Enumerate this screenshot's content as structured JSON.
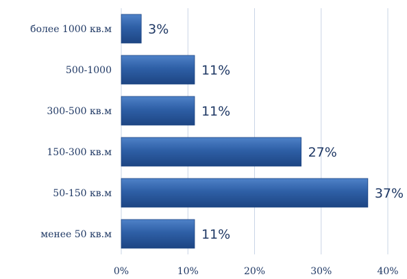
{
  "chart_data": {
    "type": "bar",
    "orientation": "horizontal",
    "title": "",
    "xlabel": "",
    "ylabel": "",
    "categories": [
      "более 1000 кв.м",
      "500-1000",
      "300-500 кв.м",
      "150-300 кв.м",
      "50-150 кв.м",
      "менее 50 кв.м"
    ],
    "values": [
      3,
      11,
      11,
      27,
      37,
      11
    ],
    "data_labels": [
      "3%",
      "11%",
      "11%",
      "27%",
      "37%",
      "11%"
    ],
    "xlim": [
      0,
      40
    ],
    "x_ticks": [
      0,
      10,
      20,
      30,
      40
    ],
    "x_tick_labels": [
      "0%",
      "10%",
      "20%",
      "30%",
      "40%"
    ],
    "grid": true,
    "legend": "none",
    "colors": {
      "bar": "#2e5fa6",
      "bar_light": "#4f82c8",
      "bar_dark": "#1d4583",
      "grid": "#c9d4e6",
      "text": "#1f3864"
    }
  }
}
